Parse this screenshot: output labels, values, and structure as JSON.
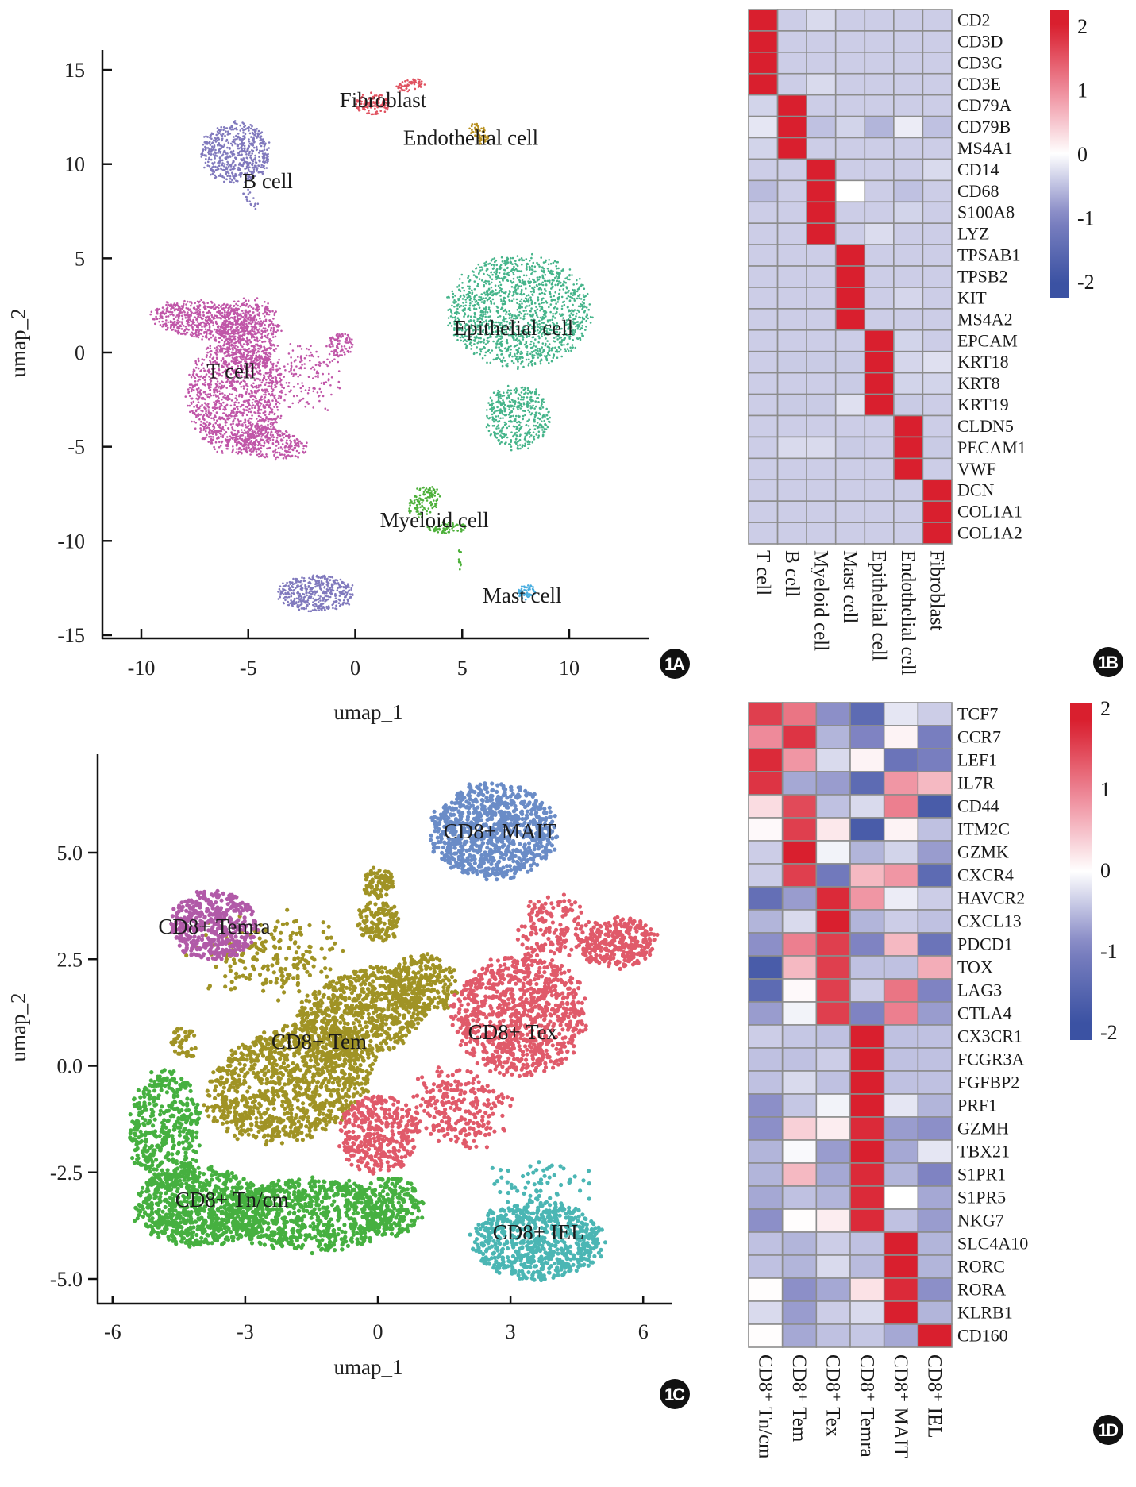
{
  "chart_data": [
    {
      "panel": "1A",
      "type": "scatter",
      "xlabel": "umap_1",
      "ylabel": "umap_2",
      "xlim": [
        -12,
        13.5
      ],
      "ylim": [
        -15.3,
        16
      ],
      "xticks": [
        "-10",
        "-5",
        "0",
        "5",
        "10"
      ],
      "xtick_values": [
        -10,
        -5,
        0,
        5,
        10
      ],
      "yticks": [
        "15",
        "10",
        "5",
        "0",
        "-5",
        "-10",
        "-15"
      ],
      "ytick_values": [
        15,
        10,
        5,
        0,
        -5,
        -10,
        -15
      ],
      "grid": false,
      "clusters": [
        {
          "name": "T cell",
          "color": "#C056A8",
          "center": [
            -5.8,
            -1.0
          ]
        },
        {
          "name": "B cell",
          "color": "#8079BD",
          "center": [
            -5.8,
            10.4
          ]
        },
        {
          "name": "Fibroblast",
          "color": "#E0515F",
          "center": [
            1.3,
            13.5
          ]
        },
        {
          "name": "Endothelial cell",
          "color": "#B8901E",
          "center": [
            5.8,
            11.6
          ]
        },
        {
          "name": "Epithelial cell",
          "color": "#45B48A",
          "center": [
            7.4,
            1.3
          ]
        },
        {
          "name": "Myeloid cell",
          "color": "#4DB03A",
          "center": [
            3.8,
            -8.6
          ]
        },
        {
          "name": "Mast cell",
          "color": "#4AAEE0",
          "center": [
            8.0,
            -12.7
          ]
        }
      ],
      "labels": [
        {
          "text": "T cell",
          "x": -5.8,
          "y": -1.0
        },
        {
          "text": "B cell",
          "x": -4.1,
          "y": 9.1
        },
        {
          "text": "Fibroblast",
          "x": 1.3,
          "y": 13.4
        },
        {
          "text": "Endothelial cell",
          "x": 5.4,
          "y": 11.4
        },
        {
          "text": "Epithelial cell",
          "x": 7.4,
          "y": 1.3
        },
        {
          "text": "Myeloid cell",
          "x": 3.7,
          "y": -8.9
        },
        {
          "text": "Mast cell",
          "x": 7.8,
          "y": -12.9
        }
      ]
    },
    {
      "panel": "1B",
      "type": "heatmap",
      "rows": [
        "CD2",
        "CD3D",
        "CD3G",
        "CD3E",
        "CD79A",
        "CD79B",
        "MS4A1",
        "CD14",
        "CD68",
        "S100A8",
        "LYZ",
        "TPSAB1",
        "TPSB2",
        "KIT",
        "MS4A2",
        "EPCAM",
        "KRT18",
        "KRT8",
        "KRT19",
        "CLDN5",
        "PECAM1",
        "VWF",
        "DCN",
        "COL1A1",
        "COL1A2"
      ],
      "columns": [
        "T cell",
        "B cell",
        "Myeloid cell",
        "Mast cell",
        "Epithelial cell",
        "Endothelial cell",
        "Fibroblast"
      ],
      "values": [
        [
          2.0,
          -0.4,
          -0.3,
          -0.4,
          -0.4,
          -0.4,
          -0.4
        ],
        [
          2.0,
          -0.4,
          -0.4,
          -0.4,
          -0.4,
          -0.4,
          -0.4
        ],
        [
          2.0,
          -0.4,
          -0.4,
          -0.4,
          -0.4,
          -0.4,
          -0.4
        ],
        [
          2.0,
          -0.4,
          -0.3,
          -0.4,
          -0.4,
          -0.4,
          -0.4
        ],
        [
          -0.35,
          2.0,
          -0.4,
          -0.4,
          -0.4,
          -0.4,
          -0.4
        ],
        [
          -0.2,
          2.0,
          -0.5,
          -0.35,
          -0.6,
          -0.15,
          -0.5
        ],
        [
          -0.35,
          2.0,
          -0.4,
          -0.4,
          -0.4,
          -0.4,
          -0.4
        ],
        [
          -0.4,
          -0.4,
          2.0,
          -0.4,
          -0.4,
          -0.4,
          -0.3
        ],
        [
          -0.55,
          -0.4,
          2.0,
          0.0,
          -0.4,
          -0.5,
          -0.4
        ],
        [
          -0.4,
          -0.4,
          2.0,
          -0.4,
          -0.4,
          -0.35,
          -0.4
        ],
        [
          -0.4,
          -0.4,
          2.0,
          -0.4,
          -0.28,
          -0.4,
          -0.4
        ],
        [
          -0.4,
          -0.4,
          -0.4,
          2.0,
          -0.4,
          -0.4,
          -0.4
        ],
        [
          -0.4,
          -0.4,
          -0.4,
          2.0,
          -0.4,
          -0.4,
          -0.4
        ],
        [
          -0.4,
          -0.4,
          -0.4,
          2.0,
          -0.4,
          -0.33,
          -0.4
        ],
        [
          -0.4,
          -0.4,
          -0.4,
          2.0,
          -0.4,
          -0.4,
          -0.4
        ],
        [
          -0.4,
          -0.4,
          -0.4,
          -0.4,
          2.0,
          -0.35,
          -0.4
        ],
        [
          -0.4,
          -0.42,
          -0.42,
          -0.42,
          2.0,
          -0.33,
          -0.25
        ],
        [
          -0.4,
          -0.4,
          -0.4,
          -0.42,
          2.0,
          -0.35,
          -0.35
        ],
        [
          -0.4,
          -0.42,
          -0.42,
          -0.25,
          2.0,
          -0.42,
          -0.4
        ],
        [
          -0.4,
          -0.4,
          -0.4,
          -0.4,
          -0.4,
          2.0,
          -0.4
        ],
        [
          -0.4,
          -0.3,
          -0.3,
          -0.42,
          -0.4,
          2.0,
          -0.42
        ],
        [
          -0.4,
          -0.4,
          -0.4,
          -0.4,
          -0.4,
          2.0,
          -0.4
        ],
        [
          -0.4,
          -0.4,
          -0.4,
          -0.4,
          -0.4,
          -0.4,
          2.0
        ],
        [
          -0.4,
          -0.4,
          -0.4,
          -0.4,
          -0.4,
          -0.4,
          2.0
        ],
        [
          -0.4,
          -0.4,
          -0.4,
          -0.4,
          -0.4,
          -0.4,
          2.0
        ]
      ],
      "colorbar": {
        "ticks": [
          "2",
          "1",
          "0",
          "-1",
          "-2"
        ],
        "tick_values": [
          2,
          1,
          0,
          -1,
          -2
        ],
        "low_color": "#3B52A3",
        "mid_color": "#FFFFFF",
        "high_color": "#D91F2E"
      }
    },
    {
      "panel": "1C",
      "type": "scatter",
      "xlabel": "umap_1",
      "ylabel": "umap_2",
      "xlim": [
        -6.4,
        6.6
      ],
      "ylim": [
        -5.6,
        7.3
      ],
      "xticks": [
        "-6",
        "-3",
        "0",
        "3",
        "6"
      ],
      "xtick_values": [
        -6,
        -3,
        0,
        3,
        6
      ],
      "yticks": [
        "5.0",
        "2.5",
        "0.0",
        "-2.5",
        "-5.0"
      ],
      "ytick_values": [
        5,
        2.5,
        0,
        -2.5,
        -5
      ],
      "grid": false,
      "clusters": [
        {
          "name": "CD8+ MAIT",
          "color": "#6A8CC7",
          "center": [
            2.6,
            5.5
          ]
        },
        {
          "name": "CD8+ Temra",
          "color": "#B15AA8",
          "center": [
            -3.7,
            3.3
          ]
        },
        {
          "name": "CD8+ Tem",
          "color": "#A09325",
          "center": [
            -1.3,
            0.5
          ]
        },
        {
          "name": "CD8+ Tex",
          "color": "#E05A6A",
          "center": [
            3.0,
            1.0
          ]
        },
        {
          "name": "CD8+ Tn/cm",
          "color": "#46B040",
          "center": [
            -3.0,
            -3.2
          ]
        },
        {
          "name": "CD8+ IEL",
          "color": "#4BB6B4",
          "center": [
            3.6,
            -4.0
          ]
        }
      ],
      "labels": [
        {
          "text": "CD8+ MAIT",
          "x": 2.76,
          "y": 5.5
        },
        {
          "text": "CD8+ Temra",
          "x": -3.7,
          "y": 3.27
        },
        {
          "text": "CD8+ Tem",
          "x": -1.33,
          "y": 0.57
        },
        {
          "text": "CD8+ Tex",
          "x": 3.05,
          "y": 0.79
        },
        {
          "text": "CD8+ Tn/cm",
          "x": -3.3,
          "y": -3.14
        },
        {
          "text": "CD8+ IEL",
          "x": 3.63,
          "y": -3.9
        }
      ]
    },
    {
      "panel": "1D",
      "type": "heatmap",
      "rows": [
        "TCF7",
        "CCR7",
        "LEF1",
        "IL7R",
        "CD44",
        "ITM2C",
        "GZMK",
        "CXCR4",
        "HAVCR2",
        "CXCL13",
        "PDCD1",
        "TOX",
        "LAG3",
        "CTLA4",
        "CX3CR1",
        "FCGR3A",
        "FGFBP2",
        "PRF1",
        "GZMH",
        "TBX21",
        "S1PR1",
        "S1PR5",
        "NKG7",
        "SLC4A10",
        "RORC",
        "RORA",
        "KLRB1",
        "CD160"
      ],
      "columns": [
        "CD8⁺ Tn/cm",
        "CD8⁺ Tem",
        "CD8⁺ Tex",
        "CD8⁺ Temra",
        "CD8⁺ MAIT",
        "CD8⁺ IEL"
      ],
      "values": [
        [
          1.7,
          1.2,
          -0.9,
          -1.5,
          -0.2,
          -0.4
        ],
        [
          1.0,
          1.8,
          -0.6,
          -1.0,
          0.1,
          -1.1
        ],
        [
          1.9,
          0.9,
          -0.3,
          0.1,
          -1.3,
          -1.1
        ],
        [
          1.8,
          -0.7,
          -0.8,
          -1.5,
          0.9,
          0.6
        ],
        [
          0.3,
          1.6,
          -0.5,
          -0.3,
          1.1,
          -1.8
        ],
        [
          0.05,
          1.7,
          0.2,
          -1.8,
          0.1,
          -0.5
        ],
        [
          -0.4,
          2.0,
          -0.1,
          -0.6,
          -0.35,
          -0.8
        ],
        [
          -0.4,
          1.7,
          -1.2,
          0.6,
          0.9,
          -1.5
        ],
        [
          -1.4,
          -0.8,
          1.9,
          0.9,
          -0.15,
          -0.4
        ],
        [
          -0.6,
          -0.3,
          2.0,
          -0.6,
          -0.4,
          -0.5
        ],
        [
          -0.9,
          1.1,
          1.7,
          -1.0,
          0.6,
          -1.3
        ],
        [
          -1.8,
          0.6,
          1.7,
          -0.5,
          -0.5,
          0.7
        ],
        [
          -1.5,
          0.05,
          1.7,
          -0.4,
          1.2,
          -1.0
        ],
        [
          -0.8,
          -0.1,
          1.7,
          -1.0,
          1.1,
          -0.8
        ],
        [
          -0.4,
          -0.45,
          -0.5,
          2.0,
          -0.5,
          -0.5
        ],
        [
          -0.5,
          -0.5,
          -0.4,
          2.0,
          -0.5,
          -0.5
        ],
        [
          -0.5,
          -0.3,
          -0.5,
          2.0,
          -0.5,
          -0.5
        ],
        [
          -0.9,
          -0.45,
          -0.1,
          2.0,
          -0.2,
          -0.6
        ],
        [
          -0.9,
          0.4,
          0.15,
          1.9,
          -0.8,
          -0.9
        ],
        [
          -0.6,
          -0.05,
          -0.8,
          2.0,
          -0.7,
          -0.2
        ],
        [
          -0.6,
          0.6,
          -0.7,
          1.9,
          -0.6,
          -1.0
        ],
        [
          -0.7,
          -0.5,
          -0.6,
          1.9,
          0.0,
          -0.7
        ],
        [
          -0.9,
          0.02,
          0.15,
          1.9,
          -0.5,
          -0.8
        ],
        [
          -0.5,
          -0.6,
          -0.4,
          -0.5,
          2.0,
          -0.6
        ],
        [
          -0.5,
          -0.6,
          -0.3,
          -0.55,
          2.0,
          -0.6
        ],
        [
          0.02,
          -0.9,
          -0.7,
          0.25,
          1.9,
          -0.9
        ],
        [
          -0.3,
          -0.8,
          -0.4,
          -0.3,
          2.0,
          -0.6
        ],
        [
          0.02,
          -0.7,
          -0.5,
          -0.45,
          -0.7,
          2.0
        ]
      ],
      "colorbar": {
        "ticks": [
          "2",
          "1",
          "0",
          "-1",
          "-2"
        ],
        "tick_values": [
          2,
          1,
          0,
          -1,
          -2
        ],
        "low_color": "#3B52A3",
        "mid_color": "#FFFFFF",
        "high_color": "#D91F2E"
      }
    }
  ],
  "badges": [
    "1A",
    "1B",
    "1C",
    "1D"
  ]
}
